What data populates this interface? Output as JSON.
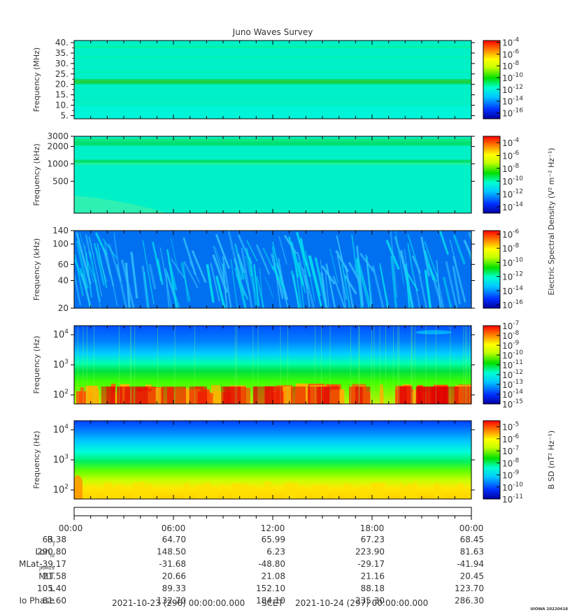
{
  "title": "Juno Waves Survey",
  "stamp": "UIOWA 20220418",
  "chart_data": [
    {
      "type": "heatmap",
      "ylabel": "Frequency (MHz)",
      "yscale": "linear",
      "ylim": [
        3.5,
        41
      ],
      "yticks": [
        "40.",
        "35.",
        "30.",
        "25.",
        "20.",
        "15.",
        "10.",
        "5."
      ],
      "ytick_values": [
        40,
        35,
        30,
        25,
        20,
        15,
        10,
        5
      ],
      "colorbar": {
        "ticks": [
          "-4",
          "-6",
          "-8",
          "-10",
          "-12",
          "-14",
          "-16"
        ],
        "exp_min": -17,
        "exp_max": -3.7
      },
      "bands": [
        {
          "y": 21.3,
          "label": "emission line"
        }
      ]
    },
    {
      "type": "heatmap",
      "ylabel": "Frequency (kHz)",
      "yscale": "log",
      "ylim": [
        140,
        3000
      ],
      "yticks": [
        "3000",
        "2000",
        "1000",
        "500"
      ],
      "ytick_values": [
        3000,
        2000,
        1000,
        500
      ],
      "colorbar": {
        "ticks": [
          "-4",
          "-6",
          "-8",
          "-10",
          "-12",
          "-14"
        ],
        "exp_min": -15,
        "exp_max": -3
      },
      "colorbar_label": "Electric Spectral Density (V² m⁻² Hz⁻¹)"
    },
    {
      "type": "heatmap",
      "ylabel": "Frequency (kHz)",
      "yscale": "log",
      "ylim": [
        20,
        140
      ],
      "yticks": [
        "140",
        "100",
        "60",
        "40",
        "20"
      ],
      "ytick_values": [
        140,
        100,
        60,
        40,
        20
      ],
      "colorbar": {
        "ticks": [
          "-6",
          "-8",
          "-10",
          "-12",
          "-14",
          "-16"
        ],
        "exp_min": -16.5,
        "exp_max": -5.5
      }
    },
    {
      "type": "heatmap",
      "ylabel": "Frequency (Hz)",
      "yscale": "log",
      "ylim": [
        50,
        20000
      ],
      "yticks": [
        "4",
        "3",
        "2"
      ],
      "ytick_values": [
        10000,
        1000,
        100
      ],
      "colorbar": {
        "ticks": [
          "-7",
          "-8",
          "-9",
          "-10",
          "-11",
          "-12",
          "-13",
          "-14",
          "-15"
        ],
        "exp_min": -15,
        "exp_max": -7
      }
    },
    {
      "type": "heatmap",
      "ylabel": "Frequency (Hz)",
      "yscale": "log",
      "ylim": [
        50,
        20000
      ],
      "yticks": [
        "4",
        "3",
        "2"
      ],
      "ytick_values": [
        10000,
        1000,
        100
      ],
      "colorbar": {
        "ticks": [
          "-5",
          "-6",
          "-7",
          "-8",
          "-9",
          "-10",
          "-11"
        ],
        "exp_min": -11,
        "exp_max": -4.5
      },
      "colorbar_label": "B SD (nT² Hz⁻¹)"
    }
  ],
  "time_axis": {
    "ticks": [
      "00:00",
      "06:00",
      "12:00",
      "18:00",
      "00:00"
    ],
    "rows": [
      {
        "label": "R",
        "sub": "J",
        "values": [
          "63.38",
          "64.70",
          "65.99",
          "67.23",
          "68.45"
        ]
      },
      {
        "label": "Lon",
        "sub": "III",
        "values": [
          "290.80",
          "148.50",
          "6.23",
          "223.90",
          "81.63"
        ]
      },
      {
        "label": "MLat",
        "sub": "JRM09",
        "values": [
          "-39.17",
          "-31.68",
          "-48.80",
          "-29.17",
          "-41.94"
        ]
      },
      {
        "label": "MLT",
        "sub": "",
        "values": [
          "21.58",
          "20.66",
          "21.08",
          "21.16",
          "20.45"
        ]
      },
      {
        "label": "L",
        "sub": "",
        "values": [
          "105.40",
          "89.33",
          "152.10",
          "88.18",
          "123.70"
        ]
      },
      {
        "label": "Io Phase",
        "sub": "",
        "values": [
          "81.60",
          "132.70",
          "184.10",
          "235.30",
          "286.30"
        ]
      }
    ],
    "start": "2021-10-23 (296) 00:00:00.000",
    "scet": "SCET",
    "end": "2021-10-24 (297) 00:00:00.000"
  }
}
